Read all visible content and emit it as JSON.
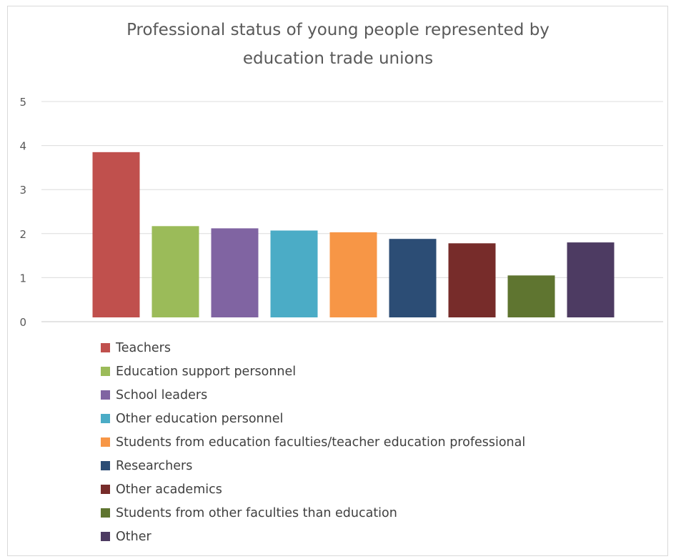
{
  "chart_data": {
    "type": "bar",
    "title_lines": [
      "Professional status of young people represented by",
      "education trade unions"
    ],
    "categories": [
      "Teachers",
      "Education support personnel",
      "School leaders",
      "Other education personnel",
      "Students from education faculties/teacher education professional",
      "Researchers",
      "Other academics",
      "Students from other faculties than education",
      "Other"
    ],
    "values": [
      3.85,
      2.17,
      2.12,
      2.07,
      2.03,
      1.88,
      1.78,
      1.05,
      1.8
    ],
    "colors": [
      "#c0504d",
      "#9bbb59",
      "#8064a2",
      "#4bacc6",
      "#f79646",
      "#2c4d75",
      "#772c2a",
      "#5f7530",
      "#4d3b62"
    ],
    "ylim": [
      0,
      5
    ],
    "yticks": [
      "0",
      "1",
      "2",
      "3",
      "4",
      "5"
    ],
    "grid": true,
    "legend_position": "bottom"
  }
}
